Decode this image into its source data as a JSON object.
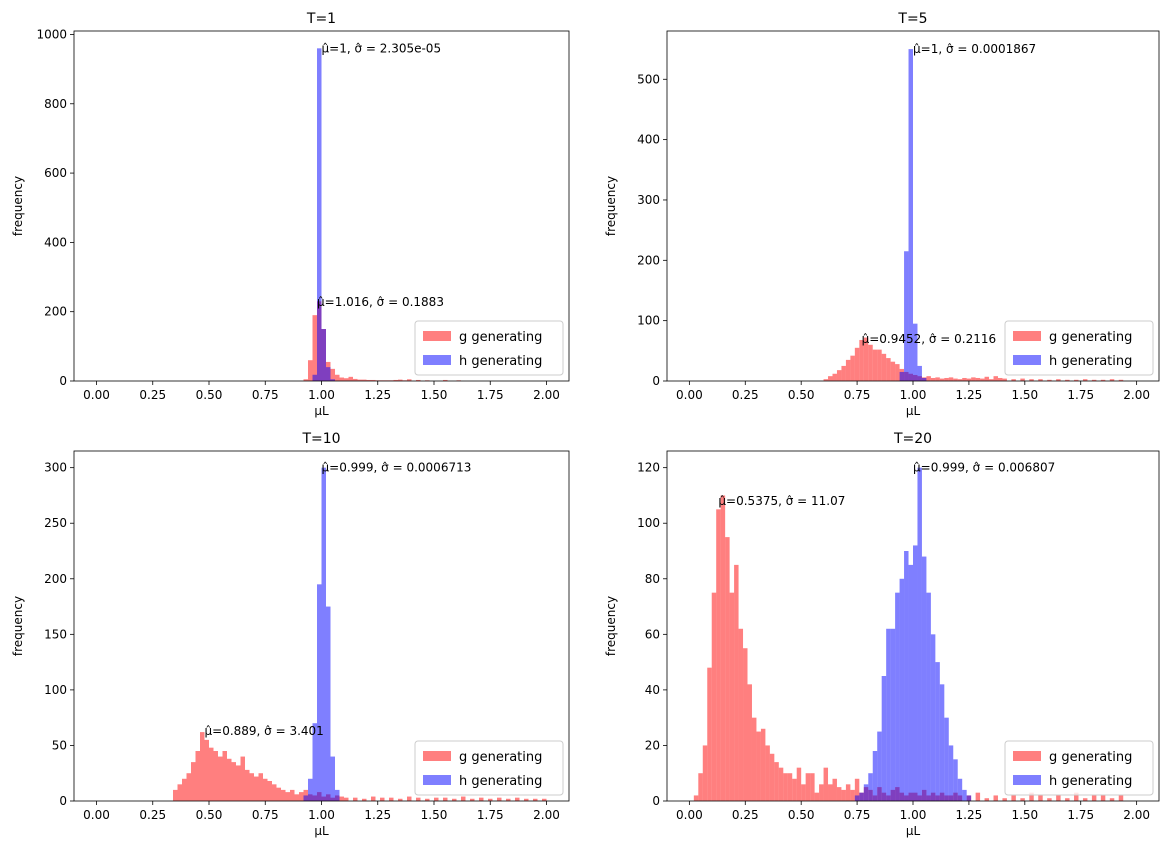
{
  "figure": {
    "background": "#ffffff"
  },
  "colors": {
    "g": "#ff0000",
    "h": "#0000ff",
    "bar_opacity": 0.5
  },
  "chart_data": [
    {
      "type": "bar",
      "title": "T=1",
      "xlabel": "μL",
      "ylabel": "frequency",
      "xlim": [
        -0.1,
        2.1
      ],
      "ylim": [
        0,
        1010
      ],
      "xticks": [
        "0.00",
        "0.25",
        "0.50",
        "0.75",
        "1.00",
        "1.25",
        "1.50",
        "1.75",
        "2.00"
      ],
      "xtick_values": [
        0,
        0.25,
        0.5,
        0.75,
        1.0,
        1.25,
        1.5,
        1.75,
        2.0
      ],
      "yticks": [
        "0",
        "200",
        "400",
        "600",
        "800",
        "1000"
      ],
      "ytick_values": [
        0,
        200,
        400,
        600,
        800,
        1000
      ],
      "legend": {
        "placement": "lower-right",
        "entries": [
          "g generating",
          "h generating"
        ]
      },
      "annotations": [
        {
          "text": "μ̂=1, σ̂ = 2.305e-05",
          "x": 1.0,
          "y": 960
        },
        {
          "text": "μ̂=1.016, σ̂ = 0.1883",
          "x": 0.98,
          "y": 228
        }
      ],
      "series": [
        {
          "name": "g generating",
          "color": "#ff0000",
          "x": [
            0.93,
            0.95,
            0.97,
            0.99,
            1.01,
            1.03,
            1.05,
            1.07,
            1.09,
            1.11,
            1.13,
            1.15,
            1.17,
            1.19,
            1.21,
            1.23,
            1.25,
            1.27,
            1.29,
            1.31,
            1.33,
            1.35,
            1.37,
            1.39,
            1.43,
            1.47,
            1.55,
            1.61
          ],
          "values": [
            5,
            60,
            190,
            230,
            150,
            55,
            35,
            18,
            10,
            8,
            12,
            6,
            4,
            4,
            3,
            3,
            2,
            2,
            2,
            2,
            3,
            4,
            2,
            5,
            3,
            2,
            3,
            2
          ]
        },
        {
          "name": "h generating",
          "color": "#0000ff",
          "x": [
            0.97,
            0.99,
            1.01,
            1.03,
            1.05
          ],
          "values": [
            18,
            960,
            150,
            40,
            5
          ]
        }
      ]
    },
    {
      "type": "bar",
      "title": "T=5",
      "xlabel": "μL",
      "ylabel": "frequency",
      "xlim": [
        -0.1,
        2.1
      ],
      "ylim": [
        0,
        580
      ],
      "xticks": [
        "0.00",
        "0.25",
        "0.50",
        "0.75",
        "1.00",
        "1.25",
        "1.50",
        "1.75",
        "2.00"
      ],
      "xtick_values": [
        0,
        0.25,
        0.5,
        0.75,
        1.0,
        1.25,
        1.5,
        1.75,
        2.0
      ],
      "yticks": [
        "0",
        "100",
        "200",
        "300",
        "400",
        "500"
      ],
      "ytick_values": [
        0,
        100,
        200,
        300,
        400,
        500
      ],
      "legend": {
        "placement": "lower-right",
        "entries": [
          "g generating",
          "h generating"
        ]
      },
      "annotations": [
        {
          "text": "μ̂=1, σ̂ = 0.0001867",
          "x": 1.0,
          "y": 550
        },
        {
          "text": "μ̂=0.9452, σ̂ = 0.2116",
          "x": 0.77,
          "y": 70
        }
      ],
      "series": [
        {
          "name": "g generating",
          "color": "#ff0000",
          "x": [
            0.61,
            0.63,
            0.65,
            0.67,
            0.69,
            0.71,
            0.73,
            0.75,
            0.77,
            0.79,
            0.81,
            0.83,
            0.85,
            0.87,
            0.89,
            0.91,
            0.93,
            0.95,
            0.97,
            0.99,
            1.01,
            1.03,
            1.05,
            1.07,
            1.09,
            1.11,
            1.13,
            1.15,
            1.17,
            1.19,
            1.21,
            1.23,
            1.25,
            1.27,
            1.29,
            1.31,
            1.33,
            1.35,
            1.37,
            1.39,
            1.41,
            1.45,
            1.49,
            1.53,
            1.57,
            1.61,
            1.65,
            1.69,
            1.73,
            1.77,
            1.81,
            1.85,
            1.89,
            1.93
          ],
          "values": [
            3,
            8,
            12,
            18,
            25,
            35,
            42,
            55,
            68,
            72,
            60,
            52,
            52,
            45,
            38,
            32,
            28,
            20,
            15,
            12,
            10,
            8,
            6,
            8,
            5,
            6,
            4,
            5,
            6,
            4,
            3,
            5,
            4,
            6,
            5,
            4,
            7,
            3,
            8,
            5,
            4,
            3,
            4,
            3,
            3,
            2,
            3,
            2,
            2,
            3,
            2,
            2,
            3,
            2
          ]
        },
        {
          "name": "h generating",
          "color": "#0000ff",
          "x": [
            0.95,
            0.97,
            0.99,
            1.01,
            1.03,
            1.05
          ],
          "values": [
            15,
            215,
            550,
            95,
            25,
            5
          ]
        }
      ]
    },
    {
      "type": "bar",
      "title": "T=10",
      "xlabel": "μL",
      "ylabel": "frequency",
      "xlim": [
        -0.1,
        2.1
      ],
      "ylim": [
        0,
        315
      ],
      "xticks": [
        "0.00",
        "0.25",
        "0.50",
        "0.75",
        "1.00",
        "1.25",
        "1.50",
        "1.75",
        "2.00"
      ],
      "xtick_values": [
        0,
        0.25,
        0.5,
        0.75,
        1.0,
        1.25,
        1.5,
        1.75,
        2.0
      ],
      "yticks": [
        "0",
        "50",
        "100",
        "150",
        "200",
        "250",
        "300"
      ],
      "ytick_values": [
        0,
        50,
        100,
        150,
        200,
        250,
        300
      ],
      "legend": {
        "placement": "lower-right",
        "entries": [
          "g generating",
          "h generating"
        ]
      },
      "annotations": [
        {
          "text": "μ̂=0.999, σ̂ = 0.0006713",
          "x": 1.0,
          "y": 300
        },
        {
          "text": "μ̂=0.889, σ̂ = 3.401",
          "x": 0.48,
          "y": 63
        }
      ],
      "series": [
        {
          "name": "g generating",
          "color": "#ff0000",
          "x": [
            0.35,
            0.37,
            0.39,
            0.41,
            0.43,
            0.45,
            0.47,
            0.49,
            0.51,
            0.53,
            0.55,
            0.57,
            0.59,
            0.61,
            0.63,
            0.65,
            0.67,
            0.69,
            0.71,
            0.73,
            0.75,
            0.77,
            0.79,
            0.81,
            0.83,
            0.85,
            0.87,
            0.89,
            0.91,
            0.93,
            0.95,
            0.97,
            0.99,
            1.01,
            1.03,
            1.05,
            1.07,
            1.09,
            1.11,
            1.15,
            1.19,
            1.23,
            1.27,
            1.31,
            1.35,
            1.39,
            1.43,
            1.47,
            1.51,
            1.55,
            1.59,
            1.63,
            1.67,
            1.71,
            1.75,
            1.79,
            1.83,
            1.87,
            1.91,
            1.95,
            1.99
          ],
          "values": [
            10,
            15,
            20,
            25,
            35,
            45,
            62,
            55,
            48,
            45,
            40,
            45,
            38,
            35,
            32,
            40,
            28,
            25,
            22,
            25,
            20,
            18,
            15,
            12,
            10,
            8,
            10,
            6,
            8,
            10,
            6,
            5,
            8,
            4,
            6,
            3,
            5,
            4,
            3,
            3,
            2,
            4,
            3,
            3,
            2,
            4,
            3,
            2,
            3,
            3,
            2,
            4,
            2,
            3,
            2,
            3,
            2,
            3,
            2,
            2,
            2
          ]
        },
        {
          "name": "h generating",
          "color": "#0000ff",
          "x": [
            0.93,
            0.95,
            0.97,
            0.99,
            1.01,
            1.03,
            1.05,
            1.07
          ],
          "values": [
            5,
            20,
            70,
            195,
            300,
            175,
            40,
            10
          ]
        }
      ]
    },
    {
      "type": "bar",
      "title": "T=20",
      "xlabel": "μL",
      "ylabel": "frequency",
      "xlim": [
        -0.1,
        2.1
      ],
      "ylim": [
        0,
        126
      ],
      "xticks": [
        "0.00",
        "0.25",
        "0.50",
        "0.75",
        "1.00",
        "1.25",
        "1.50",
        "1.75",
        "2.00"
      ],
      "xtick_values": [
        0,
        0.25,
        0.5,
        0.75,
        1.0,
        1.25,
        1.5,
        1.75,
        2.0
      ],
      "yticks": [
        "0",
        "20",
        "40",
        "60",
        "80",
        "100",
        "120"
      ],
      "ytick_values": [
        0,
        20,
        40,
        60,
        80,
        100,
        120
      ],
      "legend": {
        "placement": "lower-right",
        "entries": [
          "g generating",
          "h generating"
        ]
      },
      "annotations": [
        {
          "text": "μ̂=0.999, σ̂ = 0.006807",
          "x": 1.0,
          "y": 120
        },
        {
          "text": "μ̂=0.5375, σ̂ = 11.07",
          "x": 0.13,
          "y": 108
        }
      ],
      "series": [
        {
          "name": "g generating",
          "color": "#ff0000",
          "x": [
            0.03,
            0.05,
            0.07,
            0.09,
            0.11,
            0.13,
            0.15,
            0.17,
            0.19,
            0.21,
            0.23,
            0.25,
            0.27,
            0.29,
            0.31,
            0.33,
            0.35,
            0.37,
            0.39,
            0.41,
            0.43,
            0.45,
            0.47,
            0.49,
            0.51,
            0.53,
            0.55,
            0.57,
            0.59,
            0.61,
            0.63,
            0.65,
            0.67,
            0.69,
            0.71,
            0.73,
            0.75,
            0.77,
            0.79,
            0.81,
            0.83,
            0.85,
            0.87,
            0.89,
            0.91,
            0.93,
            0.95,
            0.97,
            0.99,
            1.01,
            1.03,
            1.05,
            1.07,
            1.09,
            1.11,
            1.13,
            1.15,
            1.17,
            1.19,
            1.21,
            1.25,
            1.29,
            1.33,
            1.37,
            1.41,
            1.45,
            1.49,
            1.53,
            1.57,
            1.61,
            1.65,
            1.69,
            1.73,
            1.77,
            1.81,
            1.85,
            1.89,
            1.93
          ],
          "values": [
            2,
            10,
            20,
            48,
            75,
            105,
            110,
            95,
            75,
            85,
            62,
            55,
            42,
            30,
            25,
            26,
            20,
            17,
            14,
            12,
            10,
            10,
            8,
            12,
            6,
            10,
            10,
            3,
            6,
            12,
            6,
            8,
            5,
            4,
            6,
            4,
            8,
            3,
            5,
            4,
            2,
            5,
            3,
            2,
            4,
            5,
            3,
            2,
            3,
            3,
            2,
            4,
            2,
            3,
            2,
            3,
            2,
            2,
            3,
            2,
            2,
            3,
            1,
            2,
            1,
            2,
            1,
            3,
            2,
            1,
            2,
            1,
            3,
            1,
            2,
            2,
            1,
            2
          ]
        },
        {
          "name": "h generating",
          "color": "#0000ff",
          "x": [
            0.75,
            0.77,
            0.79,
            0.81,
            0.83,
            0.85,
            0.87,
            0.89,
            0.91,
            0.93,
            0.95,
            0.97,
            0.99,
            1.01,
            1.03,
            1.05,
            1.07,
            1.09,
            1.11,
            1.13,
            1.15,
            1.17,
            1.19,
            1.21,
            1.23,
            1.25
          ],
          "values": [
            2,
            3,
            6,
            10,
            18,
            25,
            45,
            62,
            62,
            75,
            80,
            90,
            85,
            92,
            120,
            88,
            75,
            60,
            50,
            42,
            30,
            20,
            15,
            8,
            4,
            2
          ]
        }
      ]
    }
  ]
}
